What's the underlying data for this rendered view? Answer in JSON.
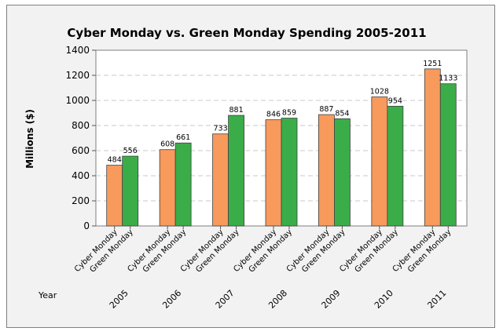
{
  "chart_data": {
    "type": "bar",
    "title": "Cyber Monday vs. Green Monday Spending 2005-2011",
    "ylabel": "Millions ($)",
    "xlabel": "Year",
    "ylim": [
      0,
      1400
    ],
    "yticks": [
      0,
      200,
      400,
      600,
      800,
      1000,
      1200,
      1400
    ],
    "grid": true,
    "categories": [
      "2005",
      "2006",
      "2007",
      "2008",
      "2009",
      "2010",
      "2011"
    ],
    "series": [
      {
        "name": "Cyber Monday",
        "color": "#f79a5c",
        "values": [
          484,
          608,
          733,
          846,
          887,
          1028,
          1251
        ]
      },
      {
        "name": "Green Monday",
        "color": "#3aad48",
        "values": [
          556,
          661,
          881,
          859,
          854,
          954,
          1133
        ]
      }
    ]
  }
}
